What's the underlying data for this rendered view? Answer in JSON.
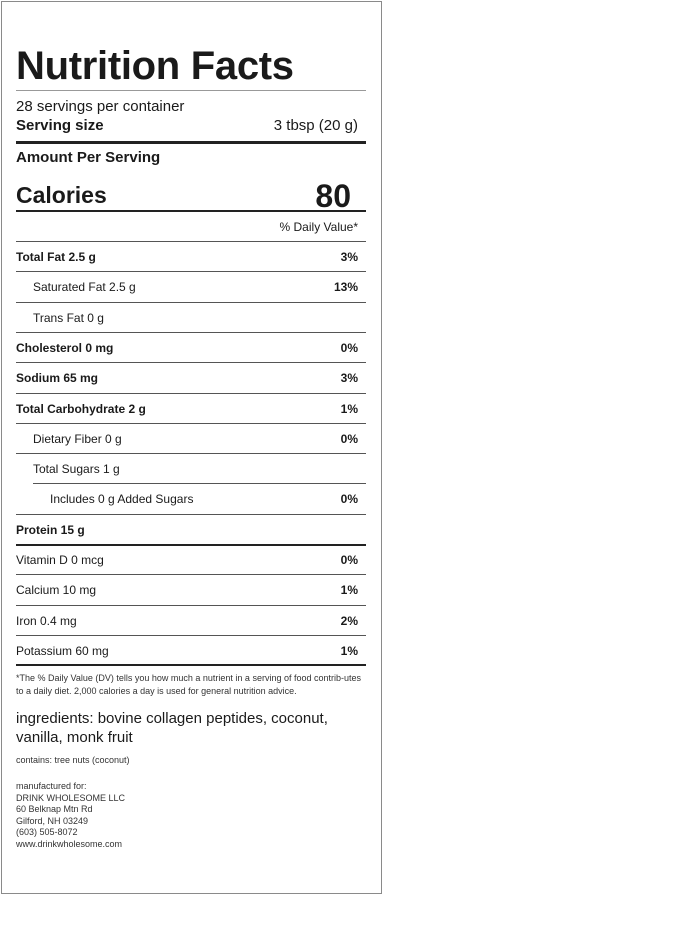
{
  "title": "Nutrition Facts",
  "servings_per_container": "28 servings per container",
  "serving_size_label": "Serving size",
  "serving_size_value": "3 tbsp (20 g)",
  "amount_per_serving": "Amount Per Serving",
  "calories_label": "Calories",
  "calories_value": "80",
  "daily_value_header": "% Daily Value*",
  "nutrients": [
    {
      "label": "Total Fat 2.5 g",
      "dv": "3%"
    },
    {
      "label": "Saturated Fat 2.5 g",
      "dv": "13%"
    },
    {
      "label": "Trans Fat 0 g",
      "dv": ""
    },
    {
      "label": "Cholesterol 0 mg",
      "dv": "0%"
    },
    {
      "label": "Sodium 65 mg",
      "dv": "3%"
    },
    {
      "label": "Total Carbohydrate 2 g",
      "dv": "1%"
    },
    {
      "label": "Dietary Fiber 0 g",
      "dv": "0%"
    },
    {
      "label": "Total Sugars 1 g",
      "dv": ""
    },
    {
      "label": "Includes 0 g Added Sugars",
      "dv": "0%"
    },
    {
      "label": "Protein 15 g",
      "dv": ""
    },
    {
      "label": "Vitamin D 0 mcg",
      "dv": "0%"
    },
    {
      "label": "Calcium 10 mg",
      "dv": "1%"
    },
    {
      "label": "Iron 0.4 mg",
      "dv": "2%"
    },
    {
      "label": "Potassium 60 mg",
      "dv": "1%"
    }
  ],
  "footnote": "*The % Daily Value (DV) tells you how much a nutrient in a serving of food contrib-utes to a daily diet. 2,000 calories a day is used for general nutrition advice.",
  "ingredients": "ingredients: bovine collagen peptides, coconut, vanilla, monk fruit",
  "contains": "contains: tree nuts (coconut)",
  "manufacturer": {
    "label": "manufactured for:",
    "name": "DRINK WHOLESOME LLC",
    "street": "60 Belknap Mtn Rd",
    "city": "Gilford, NH 03249",
    "phone": "(603) 505-8072",
    "website": "www.drinkwholesome.com"
  }
}
